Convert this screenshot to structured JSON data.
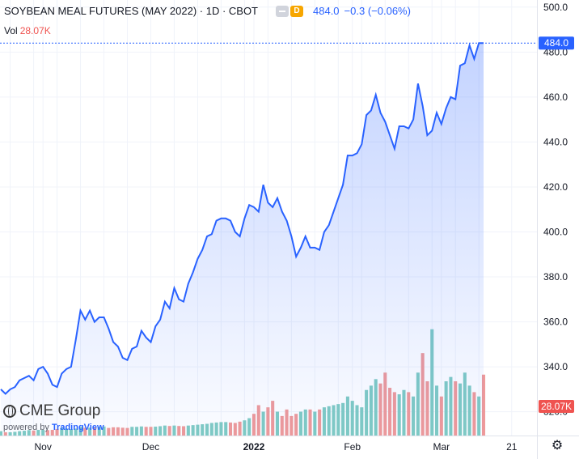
{
  "header": {
    "symbol_title": "SOYBEAN MEAL FUTURES (MAY 2022) · 1D · CBOT",
    "badge_d": "D",
    "last_price": "484.0",
    "change": "−0.3 (−0.06%)"
  },
  "volume_legend": {
    "label": "Vol",
    "value": "28.07K"
  },
  "branding": {
    "cme_text": "CME Group",
    "powered_by": "powered by ",
    "tradingview": "TradingView"
  },
  "colors": {
    "line": "#2962ff",
    "area_top": "rgba(41,98,255,0.28)",
    "area_bottom": "rgba(41,98,255,0.02)",
    "volume_up": "#80cbc4",
    "volume_down": "#ef9a9a",
    "price_label_bg": "#2962ff",
    "volume_label_bg": "#ef5350",
    "grid": "#f0f3fa",
    "axis_text": "#131722"
  },
  "chart_data": {
    "type": "line",
    "title": "SOYBEAN MEAL FUTURES (MAY 2022) · 1D · CBOT",
    "xlabel": "",
    "ylabel": "",
    "ylim": [
      317,
      501
    ],
    "y_ticks": [
      320,
      340,
      360,
      380,
      400,
      420,
      440,
      460,
      480,
      500
    ],
    "y_tick_labels": [
      "320.0",
      "340.0",
      "360.0",
      "380.0",
      "400.0",
      "420.0",
      "440.0",
      "460.0",
      "480.0",
      "500.0"
    ],
    "x_tick_labels": [
      {
        "label": "Nov",
        "index": 9
      },
      {
        "label": "Dec",
        "index": 32
      },
      {
        "label": "2022",
        "index": 54,
        "bold": true
      },
      {
        "label": "Feb",
        "index": 75
      },
      {
        "label": "Mar",
        "index": 94
      },
      {
        "label": "21",
        "index": 109
      }
    ],
    "grid": true,
    "last_price_label": "484.0",
    "last_volume_label": "28.07K",
    "series": [
      {
        "values": [
          330,
          328,
          330,
          331,
          334,
          335,
          336,
          334,
          339,
          340,
          337,
          332,
          331,
          337,
          339,
          340,
          352,
          365,
          361,
          365,
          360,
          362,
          362,
          357,
          351,
          349,
          344,
          343,
          348,
          349,
          356,
          353,
          351,
          358,
          361,
          369,
          366,
          375,
          370,
          369,
          377,
          382,
          388,
          392,
          398,
          399,
          405,
          406,
          406,
          405,
          400,
          398,
          406,
          412,
          411,
          409,
          421,
          413,
          411,
          415,
          409,
          405,
          398,
          389,
          393,
          398,
          393,
          393,
          392,
          400,
          403,
          409,
          415,
          421,
          434,
          434,
          435,
          439,
          452,
          454,
          461,
          453,
          449,
          443,
          437,
          447,
          447,
          446,
          450,
          466,
          456,
          443,
          445,
          453,
          448,
          455,
          460,
          459,
          474,
          475,
          483,
          477,
          484,
          484
        ]
      }
    ],
    "volume": {
      "ylim": [
        0,
        50000
      ],
      "values": [
        2000,
        1500,
        1500,
        1700,
        2000,
        2200,
        2500,
        2300,
        2600,
        2600,
        2500,
        2600,
        3000,
        3500,
        3200,
        3000,
        3200,
        4000,
        3600,
        3600,
        3800,
        4000,
        4200,
        3500,
        3800,
        3800,
        3600,
        3500,
        4000,
        4000,
        4200,
        4000,
        4000,
        4100,
        4300,
        4600,
        4400,
        4600,
        4400,
        4300,
        4600,
        4800,
        5000,
        5200,
        5400,
        5800,
        6000,
        6200,
        6200,
        6000,
        5800,
        6400,
        7000,
        8000,
        10000,
        14000,
        11000,
        13000,
        16000,
        11000,
        9000,
        12000,
        9000,
        10000,
        11000,
        12000,
        12000,
        11000,
        12000,
        13000,
        13500,
        14000,
        14500,
        15000,
        18000,
        16000,
        14000,
        13000,
        21000,
        23000,
        26000,
        24000,
        29000,
        22000,
        20000,
        19000,
        21000,
        20000,
        18000,
        29000,
        38000,
        25000,
        49000,
        23000,
        18000,
        25000,
        27000,
        25000,
        24000,
        29000,
        23000,
        20000,
        18000,
        28070
      ],
      "direction": [
        "up",
        "down",
        "up",
        "up",
        "up",
        "up",
        "up",
        "down",
        "up",
        "up",
        "down",
        "down",
        "down",
        "up",
        "up",
        "up",
        "up",
        "up",
        "down",
        "up",
        "down",
        "up",
        "up",
        "down",
        "down",
        "down",
        "down",
        "down",
        "up",
        "up",
        "up",
        "down",
        "down",
        "up",
        "up",
        "up",
        "down",
        "up",
        "down",
        "down",
        "up",
        "up",
        "up",
        "up",
        "up",
        "up",
        "up",
        "up",
        "up",
        "down",
        "down",
        "down",
        "up",
        "up",
        "down",
        "down",
        "up",
        "down",
        "down",
        "up",
        "down",
        "down",
        "down",
        "down",
        "up",
        "up",
        "down",
        "up",
        "down",
        "up",
        "up",
        "up",
        "up",
        "up",
        "up",
        "up",
        "up",
        "up",
        "up",
        "up",
        "up",
        "down",
        "down",
        "down",
        "down",
        "up",
        "up",
        "down",
        "up",
        "up",
        "down",
        "down",
        "up",
        "up",
        "down",
        "up",
        "up",
        "down",
        "up",
        "up",
        "up",
        "down",
        "up",
        "down"
      ]
    }
  }
}
